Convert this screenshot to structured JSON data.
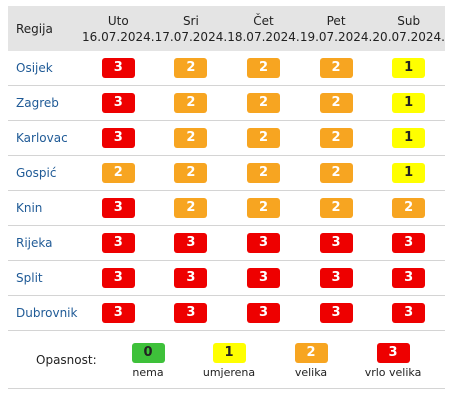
{
  "table": {
    "region_header": "Regija",
    "days": [
      {
        "day": "Uto",
        "date": "16.07.2024."
      },
      {
        "day": "Sri",
        "date": "17.07.2024."
      },
      {
        "day": "Čet",
        "date": "18.07.2024."
      },
      {
        "day": "Pet",
        "date": "19.07.2024."
      },
      {
        "day": "Sub",
        "date": "20.07.2024."
      }
    ],
    "rows": [
      {
        "region": "Osijek",
        "levels": [
          3,
          2,
          2,
          2,
          1
        ]
      },
      {
        "region": "Zagreb",
        "levels": [
          3,
          2,
          2,
          2,
          1
        ]
      },
      {
        "region": "Karlovac",
        "levels": [
          3,
          2,
          2,
          2,
          1
        ]
      },
      {
        "region": "Gospić",
        "levels": [
          2,
          2,
          2,
          2,
          1
        ]
      },
      {
        "region": "Knin",
        "levels": [
          3,
          2,
          2,
          2,
          2
        ]
      },
      {
        "region": "Rijeka",
        "levels": [
          3,
          3,
          3,
          3,
          3
        ]
      },
      {
        "region": "Split",
        "levels": [
          3,
          3,
          3,
          3,
          3
        ]
      },
      {
        "region": "Dubrovnik",
        "levels": [
          3,
          3,
          3,
          3,
          3
        ]
      }
    ]
  },
  "legend": {
    "title": "Opasnost:",
    "items": [
      {
        "level": "0",
        "label": "nema",
        "color": "#3ec13a"
      },
      {
        "level": "1",
        "label": "umjerena",
        "color": "#ffff00"
      },
      {
        "level": "2",
        "label": "velika",
        "color": "#f7a521"
      },
      {
        "level": "3",
        "label": "vrlo velika",
        "color": "#ee0000"
      }
    ]
  }
}
